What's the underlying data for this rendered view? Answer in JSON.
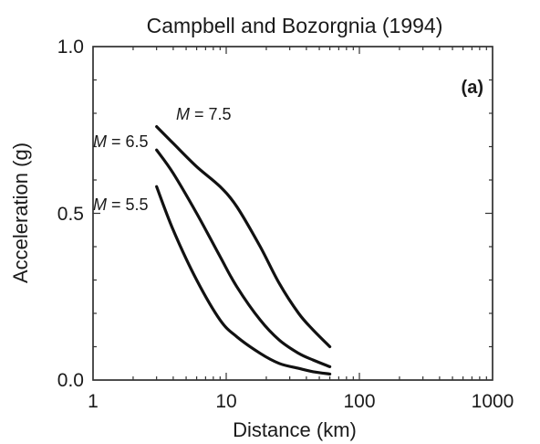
{
  "chart_data": {
    "type": "line",
    "title": "Campbell and Bozorgnia (1994)",
    "panel_label": "(a)",
    "xlabel": "Distance (km)",
    "ylabel": "Acceleration (g)",
    "xscale": "log",
    "xlim": [
      1,
      1000
    ],
    "ylim": [
      0,
      1
    ],
    "xticks": [
      {
        "value": 1,
        "label": "1"
      },
      {
        "value": 10,
        "label": "10"
      },
      {
        "value": 100,
        "label": "100"
      },
      {
        "value": 1000,
        "label": "1000"
      }
    ],
    "yticks": [
      {
        "value": 0,
        "label": "0.0"
      },
      {
        "value": 0.5,
        "label": "0.5"
      },
      {
        "value": 1,
        "label": "1.0"
      }
    ],
    "grid": false,
    "series": [
      {
        "name": "M = 7.5",
        "label_prefix": "M",
        "label_suffix": " = 7.5",
        "x": [
          3,
          4,
          6,
          9,
          12,
          18,
          25,
          35,
          45,
          60
        ],
        "y": [
          0.76,
          0.71,
          0.64,
          0.58,
          0.52,
          0.4,
          0.29,
          0.2,
          0.15,
          0.1
        ]
      },
      {
        "name": "M = 6.5",
        "label_prefix": "M",
        "label_suffix": " = 6.5",
        "x": [
          3,
          4,
          6,
          9,
          12,
          18,
          25,
          35,
          45,
          60
        ],
        "y": [
          0.69,
          0.62,
          0.5,
          0.37,
          0.28,
          0.18,
          0.12,
          0.08,
          0.06,
          0.04
        ]
      },
      {
        "name": "M = 5.5",
        "label_prefix": "M",
        "label_suffix": " = 5.5",
        "x": [
          3,
          4,
          6,
          9,
          12,
          18,
          25,
          35,
          45,
          60
        ],
        "y": [
          0.58,
          0.45,
          0.3,
          0.18,
          0.13,
          0.08,
          0.05,
          0.035,
          0.025,
          0.018
        ]
      }
    ]
  }
}
